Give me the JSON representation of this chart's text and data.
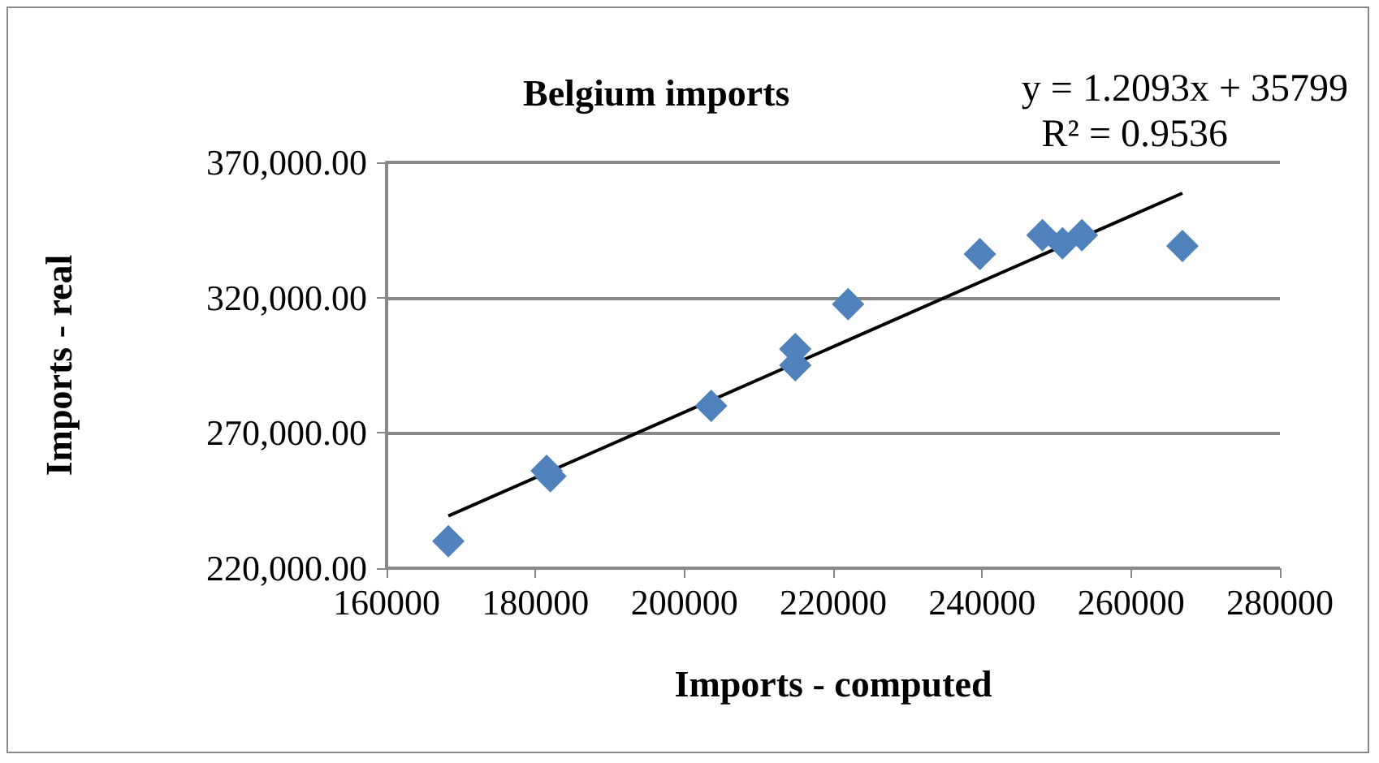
{
  "chart_data": {
    "type": "scatter",
    "title": "Belgium imports",
    "xlabel": "Imports - computed",
    "ylabel": "Imports - real",
    "annotations": [
      "y = 1.2093x + 35799",
      "R² = 0.9536"
    ],
    "x": [
      168300,
      181500,
      182000,
      203600,
      214900,
      214900,
      222000,
      239700,
      248100,
      250800,
      253400,
      266900
    ],
    "series": [
      {
        "color": "#4f81bd",
        "marker": "diamond",
        "values": [
          230000,
          256000,
          254000,
          280000,
          301000,
          295000,
          317600,
          336100,
          343100,
          340100,
          343100,
          339100
        ]
      },
      {
        "type": "line",
        "color": "#000000",
        "marker": "none",
        "x": [
          168300,
          266900
        ],
        "values": [
          239300,
          358600
        ]
      }
    ],
    "xlim": [
      160000,
      280000
    ],
    "xticks": [
      160000,
      180000,
      200000,
      220000,
      240000,
      260000,
      280000
    ],
    "ylim": [
      220000,
      370000
    ],
    "yticks": [
      {
        "value": 220000,
        "label": "220,000.00"
      },
      {
        "value": 270000,
        "label": "270,000.00"
      },
      {
        "value": 320000,
        "label": "320,000.00"
      },
      {
        "value": 370000,
        "label": "370,000.00"
      }
    ],
    "grid": "y"
  }
}
